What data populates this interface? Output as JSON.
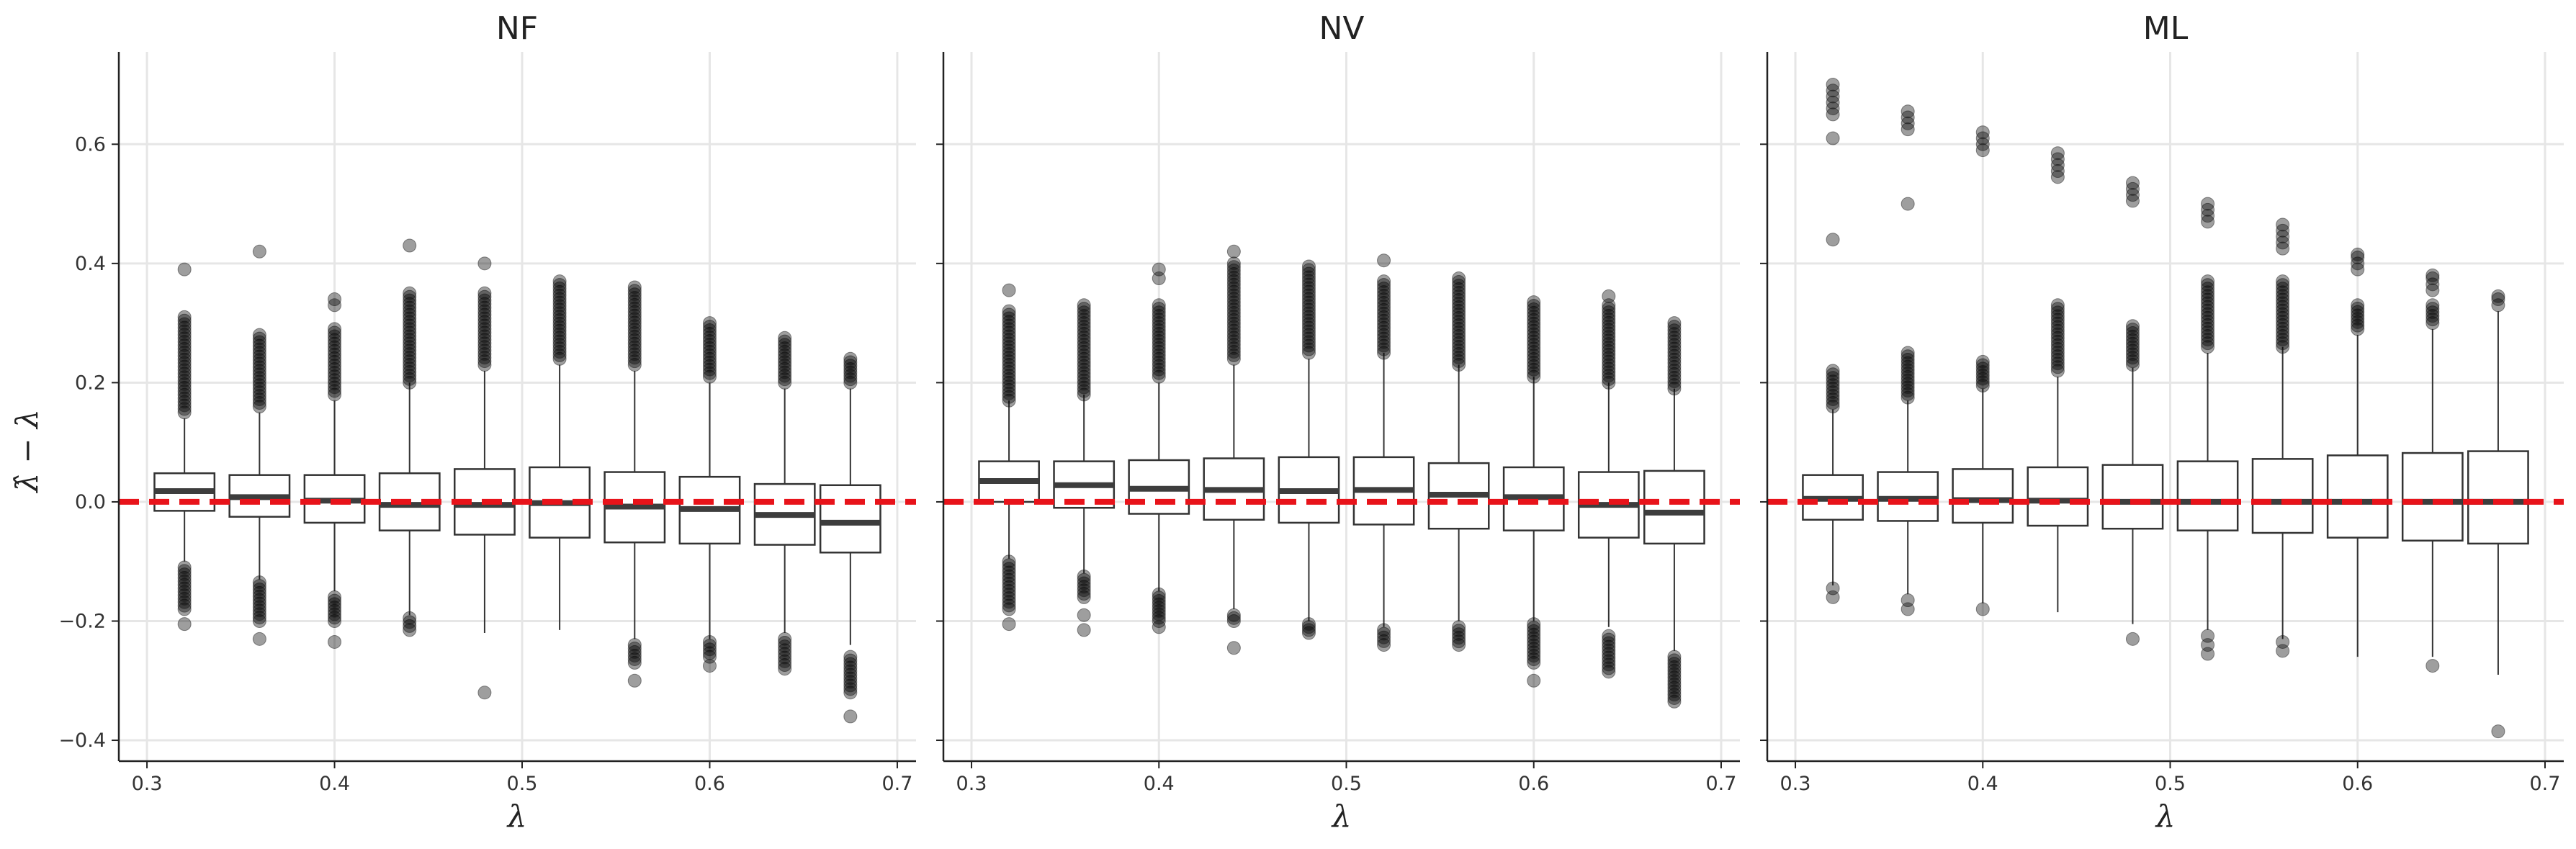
{
  "figure": {
    "ylabel": "λ̂ − λ",
    "xlabel": "λ",
    "x_ticks": [
      "0.3",
      "0.4",
      "0.5",
      "0.6",
      "0.7"
    ],
    "y_ticks": [
      "−0.4",
      "−0.2",
      "0.0",
      "0.2",
      "0.4",
      "0.6"
    ]
  },
  "colors": {
    "reference_line": "#e8131a",
    "median": "#3d3d3d",
    "outlier": "#000000"
  },
  "chart_data": [
    {
      "type": "box",
      "title": "NF",
      "xlabel": "λ",
      "ylabel": "λ̂ − λ",
      "xlim": [
        0.285,
        0.71
      ],
      "ylim": [
        -0.435,
        0.755
      ],
      "grid": true,
      "reference_line_y": 0,
      "box_width": 0.032,
      "boxes": [
        {
          "x": 0.32,
          "q1": -0.015,
          "median": 0.018,
          "q3": 0.048,
          "whisker_low": -0.1,
          "whisker_high": 0.14
        },
        {
          "x": 0.36,
          "q1": -0.025,
          "median": 0.008,
          "q3": 0.045,
          "whisker_low": -0.13,
          "whisker_high": 0.15
        },
        {
          "x": 0.4,
          "q1": -0.035,
          "median": 0.002,
          "q3": 0.045,
          "whisker_low": -0.15,
          "whisker_high": 0.17
        },
        {
          "x": 0.44,
          "q1": -0.048,
          "median": -0.005,
          "q3": 0.048,
          "whisker_low": -0.19,
          "whisker_high": 0.2
        },
        {
          "x": 0.48,
          "q1": -0.055,
          "median": -0.005,
          "q3": 0.055,
          "whisker_low": -0.22,
          "whisker_high": 0.22
        },
        {
          "x": 0.52,
          "q1": -0.06,
          "median": -0.002,
          "q3": 0.058,
          "whisker_low": -0.215,
          "whisker_high": 0.23
        },
        {
          "x": 0.56,
          "q1": -0.068,
          "median": -0.008,
          "q3": 0.05,
          "whisker_low": -0.23,
          "whisker_high": 0.22
        },
        {
          "x": 0.6,
          "q1": -0.07,
          "median": -0.012,
          "q3": 0.042,
          "whisker_low": -0.23,
          "whisker_high": 0.2
        },
        {
          "x": 0.64,
          "q1": -0.072,
          "median": -0.022,
          "q3": 0.03,
          "whisker_low": -0.22,
          "whisker_high": 0.19
        },
        {
          "x": 0.675,
          "q1": -0.085,
          "median": -0.035,
          "q3": 0.028,
          "whisker_low": -0.24,
          "whisker_high": 0.19
        }
      ],
      "outliers": [
        {
          "x": 0.32,
          "high_range": [
            0.15,
            0.31
          ],
          "low_range": [
            -0.18,
            -0.11
          ],
          "singles": [
            0.39,
            -0.205
          ]
        },
        {
          "x": 0.36,
          "high_range": [
            0.16,
            0.28
          ],
          "low_range": [
            -0.2,
            -0.135
          ],
          "singles": [
            0.42,
            -0.23
          ]
        },
        {
          "x": 0.4,
          "high_range": [
            0.18,
            0.29
          ],
          "low_range": [
            -0.2,
            -0.16
          ],
          "singles": [
            0.34,
            0.33,
            -0.235
          ]
        },
        {
          "x": 0.44,
          "high_range": [
            0.2,
            0.35
          ],
          "low_range": [
            -0.215,
            -0.195
          ],
          "singles": [
            0.43
          ]
        },
        {
          "x": 0.48,
          "high_range": [
            0.23,
            0.35
          ],
          "low_range": [],
          "singles": [
            0.4,
            -0.32
          ]
        },
        {
          "x": 0.52,
          "high_range": [
            0.24,
            0.37
          ],
          "low_range": [],
          "singles": []
        },
        {
          "x": 0.56,
          "high_range": [
            0.23,
            0.36
          ],
          "low_range": [
            -0.27,
            -0.24
          ],
          "singles": [
            -0.3
          ]
        },
        {
          "x": 0.6,
          "high_range": [
            0.21,
            0.3
          ],
          "low_range": [
            -0.26,
            -0.235
          ],
          "singles": [
            -0.275
          ]
        },
        {
          "x": 0.64,
          "high_range": [
            0.2,
            0.275
          ],
          "low_range": [
            -0.28,
            -0.23
          ],
          "singles": []
        },
        {
          "x": 0.675,
          "high_range": [
            0.2,
            0.24
          ],
          "low_range": [
            -0.32,
            -0.26
          ],
          "singles": [
            -0.36
          ]
        }
      ]
    },
    {
      "type": "box",
      "title": "NV",
      "xlabel": "λ",
      "ylabel": "λ̂ − λ",
      "xlim": [
        0.285,
        0.71
      ],
      "ylim": [
        -0.435,
        0.755
      ],
      "grid": true,
      "reference_line_y": 0,
      "box_width": 0.032,
      "boxes": [
        {
          "x": 0.32,
          "q1": 0.0,
          "median": 0.035,
          "q3": 0.068,
          "whisker_low": -0.095,
          "whisker_high": 0.17
        },
        {
          "x": 0.36,
          "q1": -0.01,
          "median": 0.028,
          "q3": 0.068,
          "whisker_low": -0.12,
          "whisker_high": 0.18
        },
        {
          "x": 0.4,
          "q1": -0.02,
          "median": 0.022,
          "q3": 0.07,
          "whisker_low": -0.15,
          "whisker_high": 0.2
        },
        {
          "x": 0.44,
          "q1": -0.03,
          "median": 0.02,
          "q3": 0.073,
          "whisker_low": -0.18,
          "whisker_high": 0.23
        },
        {
          "x": 0.48,
          "q1": -0.035,
          "median": 0.018,
          "q3": 0.075,
          "whisker_low": -0.2,
          "whisker_high": 0.24
        },
        {
          "x": 0.52,
          "q1": -0.038,
          "median": 0.02,
          "q3": 0.075,
          "whisker_low": -0.21,
          "whisker_high": 0.25
        },
        {
          "x": 0.56,
          "q1": -0.045,
          "median": 0.012,
          "q3": 0.065,
          "whisker_low": -0.2,
          "whisker_high": 0.23
        },
        {
          "x": 0.6,
          "q1": -0.048,
          "median": 0.008,
          "q3": 0.058,
          "whisker_low": -0.2,
          "whisker_high": 0.21
        },
        {
          "x": 0.64,
          "q1": -0.06,
          "median": -0.005,
          "q3": 0.05,
          "whisker_low": -0.21,
          "whisker_high": 0.2
        },
        {
          "x": 0.675,
          "q1": -0.07,
          "median": -0.018,
          "q3": 0.052,
          "whisker_low": -0.25,
          "whisker_high": 0.19
        }
      ],
      "outliers": [
        {
          "x": 0.32,
          "high_range": [
            0.17,
            0.32
          ],
          "low_range": [
            -0.18,
            -0.1
          ],
          "singles": [
            0.355,
            -0.205
          ]
        },
        {
          "x": 0.36,
          "high_range": [
            0.18,
            0.33
          ],
          "low_range": [
            -0.16,
            -0.125
          ],
          "singles": [
            -0.19,
            -0.215
          ]
        },
        {
          "x": 0.4,
          "high_range": [
            0.21,
            0.33
          ],
          "low_range": [
            -0.2,
            -0.155
          ],
          "singles": [
            0.39,
            0.375,
            -0.21
          ]
        },
        {
          "x": 0.44,
          "high_range": [
            0.24,
            0.4
          ],
          "low_range": [
            -0.2,
            -0.19
          ],
          "singles": [
            0.42,
            -0.245
          ]
        },
        {
          "x": 0.48,
          "high_range": [
            0.25,
            0.395
          ],
          "low_range": [
            -0.22,
            -0.205
          ],
          "singles": []
        },
        {
          "x": 0.52,
          "high_range": [
            0.25,
            0.37
          ],
          "low_range": [
            -0.24,
            -0.215
          ],
          "singles": [
            0.405
          ]
        },
        {
          "x": 0.56,
          "high_range": [
            0.23,
            0.375
          ],
          "low_range": [
            -0.24,
            -0.21
          ],
          "singles": []
        },
        {
          "x": 0.6,
          "high_range": [
            0.21,
            0.335
          ],
          "low_range": [
            -0.27,
            -0.205
          ],
          "singles": [
            -0.3
          ]
        },
        {
          "x": 0.64,
          "high_range": [
            0.2,
            0.33
          ],
          "low_range": [
            -0.285,
            -0.225
          ],
          "singles": [
            0.345
          ]
        },
        {
          "x": 0.675,
          "high_range": [
            0.19,
            0.3
          ],
          "low_range": [
            -0.335,
            -0.26
          ],
          "singles": []
        }
      ]
    },
    {
      "type": "box",
      "title": "ML",
      "xlabel": "λ",
      "ylabel": "λ̂ − λ",
      "xlim": [
        0.285,
        0.71
      ],
      "ylim": [
        -0.435,
        0.755
      ],
      "grid": true,
      "reference_line_y": 0,
      "box_width": 0.032,
      "boxes": [
        {
          "x": 0.32,
          "q1": -0.03,
          "median": 0.005,
          "q3": 0.045,
          "whisker_low": -0.14,
          "whisker_high": 0.155
        },
        {
          "x": 0.36,
          "q1": -0.032,
          "median": 0.005,
          "q3": 0.05,
          "whisker_low": -0.155,
          "whisker_high": 0.17
        },
        {
          "x": 0.4,
          "q1": -0.035,
          "median": 0.003,
          "q3": 0.055,
          "whisker_low": -0.17,
          "whisker_high": 0.19
        },
        {
          "x": 0.44,
          "q1": -0.04,
          "median": 0.002,
          "q3": 0.058,
          "whisker_low": -0.185,
          "whisker_high": 0.21
        },
        {
          "x": 0.48,
          "q1": -0.045,
          "median": 0.0,
          "q3": 0.062,
          "whisker_low": -0.205,
          "whisker_high": 0.225
        },
        {
          "x": 0.52,
          "q1": -0.048,
          "median": 0.0,
          "q3": 0.068,
          "whisker_low": -0.215,
          "whisker_high": 0.25
        },
        {
          "x": 0.56,
          "q1": -0.052,
          "median": 0.0,
          "q3": 0.072,
          "whisker_low": -0.23,
          "whisker_high": 0.26
        },
        {
          "x": 0.6,
          "q1": -0.06,
          "median": 0.0,
          "q3": 0.078,
          "whisker_low": -0.26,
          "whisker_high": 0.28
        },
        {
          "x": 0.64,
          "q1": -0.065,
          "median": 0.0,
          "q3": 0.082,
          "whisker_low": -0.26,
          "whisker_high": 0.29
        },
        {
          "x": 0.675,
          "q1": -0.07,
          "median": 0.0,
          "q3": 0.085,
          "whisker_low": -0.29,
          "whisker_high": 0.32
        }
      ],
      "outliers": [
        {
          "x": 0.32,
          "high_range": [
            0.16,
            0.22
          ],
          "low_range": [],
          "singles": [
            0.44,
            0.61,
            0.65,
            0.66,
            0.67,
            0.68,
            0.69,
            0.7,
            -0.145,
            -0.16
          ]
        },
        {
          "x": 0.36,
          "high_range": [
            0.175,
            0.25
          ],
          "low_range": [],
          "singles": [
            0.5,
            0.625,
            0.635,
            0.645,
            0.655,
            -0.165,
            -0.18
          ]
        },
        {
          "x": 0.4,
          "high_range": [
            0.195,
            0.235
          ],
          "low_range": [],
          "singles": [
            0.59,
            0.6,
            0.61,
            0.62,
            -0.18
          ]
        },
        {
          "x": 0.44,
          "high_range": [
            0.22,
            0.33
          ],
          "low_range": [],
          "singles": [
            0.545,
            0.555,
            0.565,
            0.575,
            0.585
          ]
        },
        {
          "x": 0.48,
          "high_range": [
            0.23,
            0.295
          ],
          "low_range": [],
          "singles": [
            0.505,
            0.515,
            0.525,
            0.535,
            -0.23
          ]
        },
        {
          "x": 0.52,
          "high_range": [
            0.26,
            0.37
          ],
          "low_range": [],
          "singles": [
            0.47,
            0.48,
            0.49,
            0.5,
            -0.225,
            -0.24,
            -0.255
          ]
        },
        {
          "x": 0.56,
          "high_range": [
            0.26,
            0.37
          ],
          "low_range": [],
          "singles": [
            0.425,
            0.435,
            0.445,
            0.455,
            0.465,
            -0.235,
            -0.25
          ]
        },
        {
          "x": 0.6,
          "high_range": [
            0.29,
            0.33
          ],
          "low_range": [],
          "singles": [
            0.39,
            0.4,
            0.41,
            0.415
          ]
        },
        {
          "x": 0.64,
          "high_range": [
            0.3,
            0.33
          ],
          "low_range": [],
          "singles": [
            0.355,
            0.365,
            0.375,
            0.38,
            -0.275
          ]
        },
        {
          "x": 0.675,
          "high_range": [],
          "low_range": [],
          "singles": [
            0.33,
            0.34,
            0.345,
            -0.385
          ]
        }
      ]
    }
  ]
}
